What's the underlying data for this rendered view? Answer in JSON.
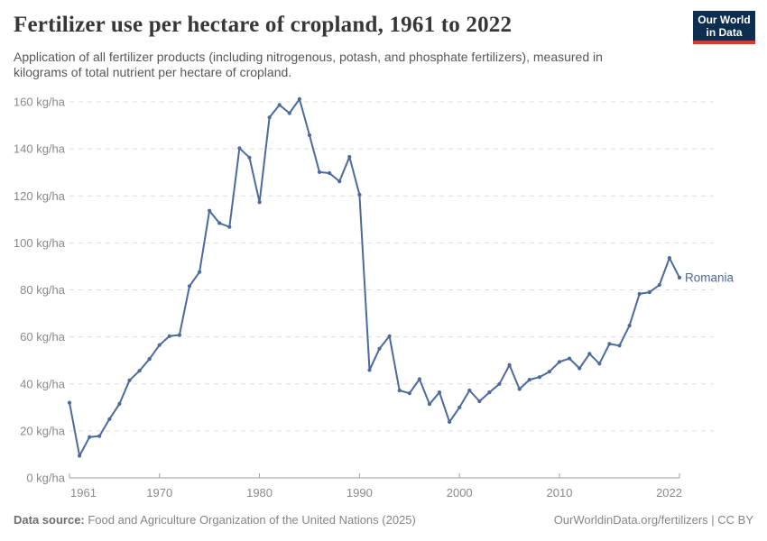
{
  "header": {
    "title": "Fertilizer use per hectare of cropland, 1961 to 2022",
    "subtitle": "Application of all fertilizer products (including nitrogenous, potash, and phosphate fertilizers), measured in kilograms of total nutrient per hectare of cropland.",
    "logo": {
      "line1": "Our World",
      "line2": "in Data",
      "bg": "#0d2e4f",
      "accent": "#e0362c"
    }
  },
  "footer": {
    "source_label": "Data source:",
    "source_text": " Food and Agriculture Organization of the United Nations (2025)",
    "link_text": "OurWorldinData.org/fertilizers | CC BY"
  },
  "chart_data": {
    "type": "line",
    "title": "Fertilizer use per hectare of cropland, 1961 to 2022",
    "xlabel": "",
    "ylabel": "kg/ha",
    "ylim": [
      0,
      160
    ],
    "ytick_step": 20,
    "ytick_suffix": " kg/ha",
    "xlim": [
      1961,
      2022
    ],
    "xticks": [
      1961,
      1970,
      1980,
      1990,
      2000,
      2010,
      2022
    ],
    "grid": true,
    "legend_position": "end-of-line-label",
    "colors": {
      "grid": "#dedede",
      "axis": "#9e9e9e",
      "tick_label": "#8a8a8a"
    },
    "series": [
      {
        "name": "Romania",
        "color": "#4c6a9c",
        "x": [
          1961,
          1962,
          1963,
          1964,
          1965,
          1966,
          1967,
          1968,
          1969,
          1970,
          1971,
          1972,
          1973,
          1974,
          1975,
          1976,
          1977,
          1978,
          1979,
          1980,
          1981,
          1982,
          1983,
          1984,
          1985,
          1986,
          1987,
          1988,
          1989,
          1990,
          1991,
          1992,
          1993,
          1994,
          1995,
          1996,
          1997,
          1998,
          1999,
          2000,
          2001,
          2002,
          2003,
          2004,
          2005,
          2006,
          2007,
          2008,
          2009,
          2010,
          2011,
          2012,
          2013,
          2014,
          2015,
          2016,
          2017,
          2018,
          2019,
          2020,
          2021,
          2022
        ],
        "values": [
          32,
          9.4,
          17.4,
          17.8,
          25,
          31.5,
          41.5,
          45.6,
          50.6,
          56.5,
          60.3,
          60.8,
          81.6,
          87.6,
          113.7,
          108.4,
          106.8,
          140.3,
          136.3,
          117.3,
          153.4,
          158.7,
          155.2,
          161.2,
          145.8,
          130.1,
          129.7,
          126.2,
          136.6,
          120.5,
          45.9,
          55.0,
          60.3,
          37.2,
          36.0,
          42.0,
          31.4,
          36.4,
          23.8,
          30.0,
          37.2,
          32.6,
          36.4,
          40.0,
          48.0,
          37.8,
          41.8,
          42.9,
          45.2,
          49.4,
          50.8,
          46.6,
          52.8,
          48.6,
          57.0,
          56.3,
          64.8,
          78.3,
          79.0,
          82.1,
          93.6,
          85.2
        ]
      }
    ]
  }
}
